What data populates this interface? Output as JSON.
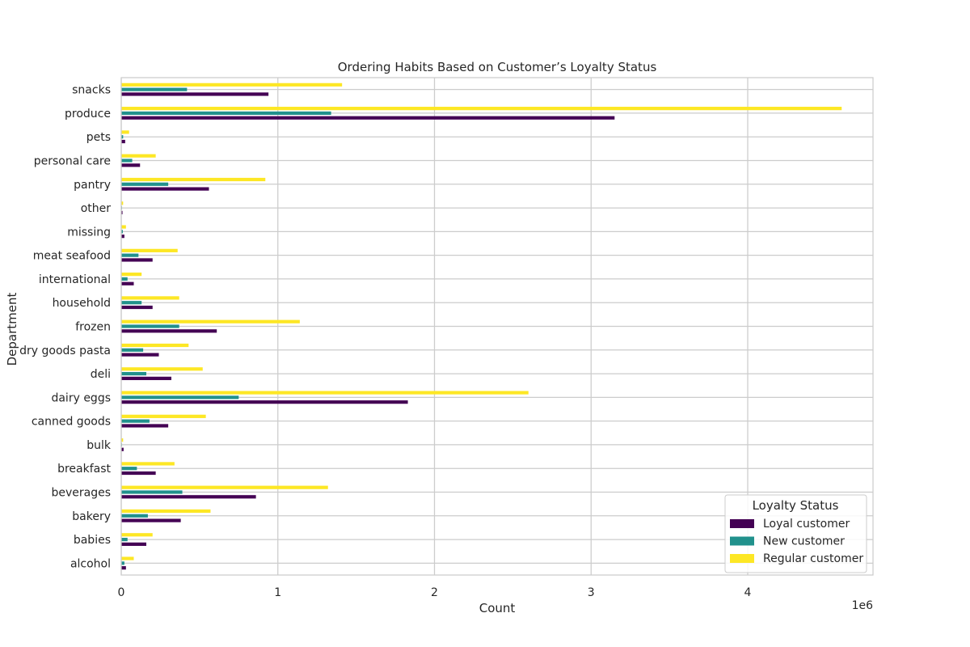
{
  "chart_data": {
    "type": "bar",
    "orientation": "horizontal",
    "title": "Ordering Habits Based on Customer’s Loyalty Status",
    "xlabel": "Count",
    "ylabel": "Department",
    "x_scale_label": "1e6",
    "xlim": [
      0,
      4.8
    ],
    "x_ticks": [
      "0",
      "1",
      "2",
      "3",
      "4"
    ],
    "grid": true,
    "categories": [
      "alcohol",
      "babies",
      "bakery",
      "beverages",
      "breakfast",
      "bulk",
      "canned goods",
      "dairy eggs",
      "deli",
      "dry goods pasta",
      "frozen",
      "household",
      "international",
      "meat seafood",
      "missing",
      "other",
      "pantry",
      "personal care",
      "pets",
      "produce",
      "snacks"
    ],
    "legend": {
      "title": "Loyalty Status",
      "placement": "lower-right"
    },
    "series": [
      {
        "name": "Loyal customer",
        "color": "#440154",
        "values": [
          0.03,
          0.16,
          0.38,
          0.86,
          0.22,
          0.015,
          0.3,
          1.83,
          0.32,
          0.24,
          0.61,
          0.2,
          0.08,
          0.2,
          0.02,
          0.008,
          0.56,
          0.12,
          0.025,
          3.15,
          0.94
        ]
      },
      {
        "name": "New customer",
        "color": "#21918c",
        "values": [
          0.02,
          0.04,
          0.17,
          0.39,
          0.1,
          0.003,
          0.18,
          0.75,
          0.16,
          0.14,
          0.37,
          0.13,
          0.04,
          0.11,
          0.01,
          0.003,
          0.3,
          0.07,
          0.012,
          1.34,
          0.42
        ]
      },
      {
        "name": "Regular customer",
        "color": "#fde725",
        "values": [
          0.08,
          0.2,
          0.57,
          1.32,
          0.34,
          0.012,
          0.54,
          2.6,
          0.52,
          0.43,
          1.14,
          0.37,
          0.13,
          0.36,
          0.03,
          0.012,
          0.92,
          0.22,
          0.05,
          4.6,
          1.41
        ]
      }
    ]
  }
}
